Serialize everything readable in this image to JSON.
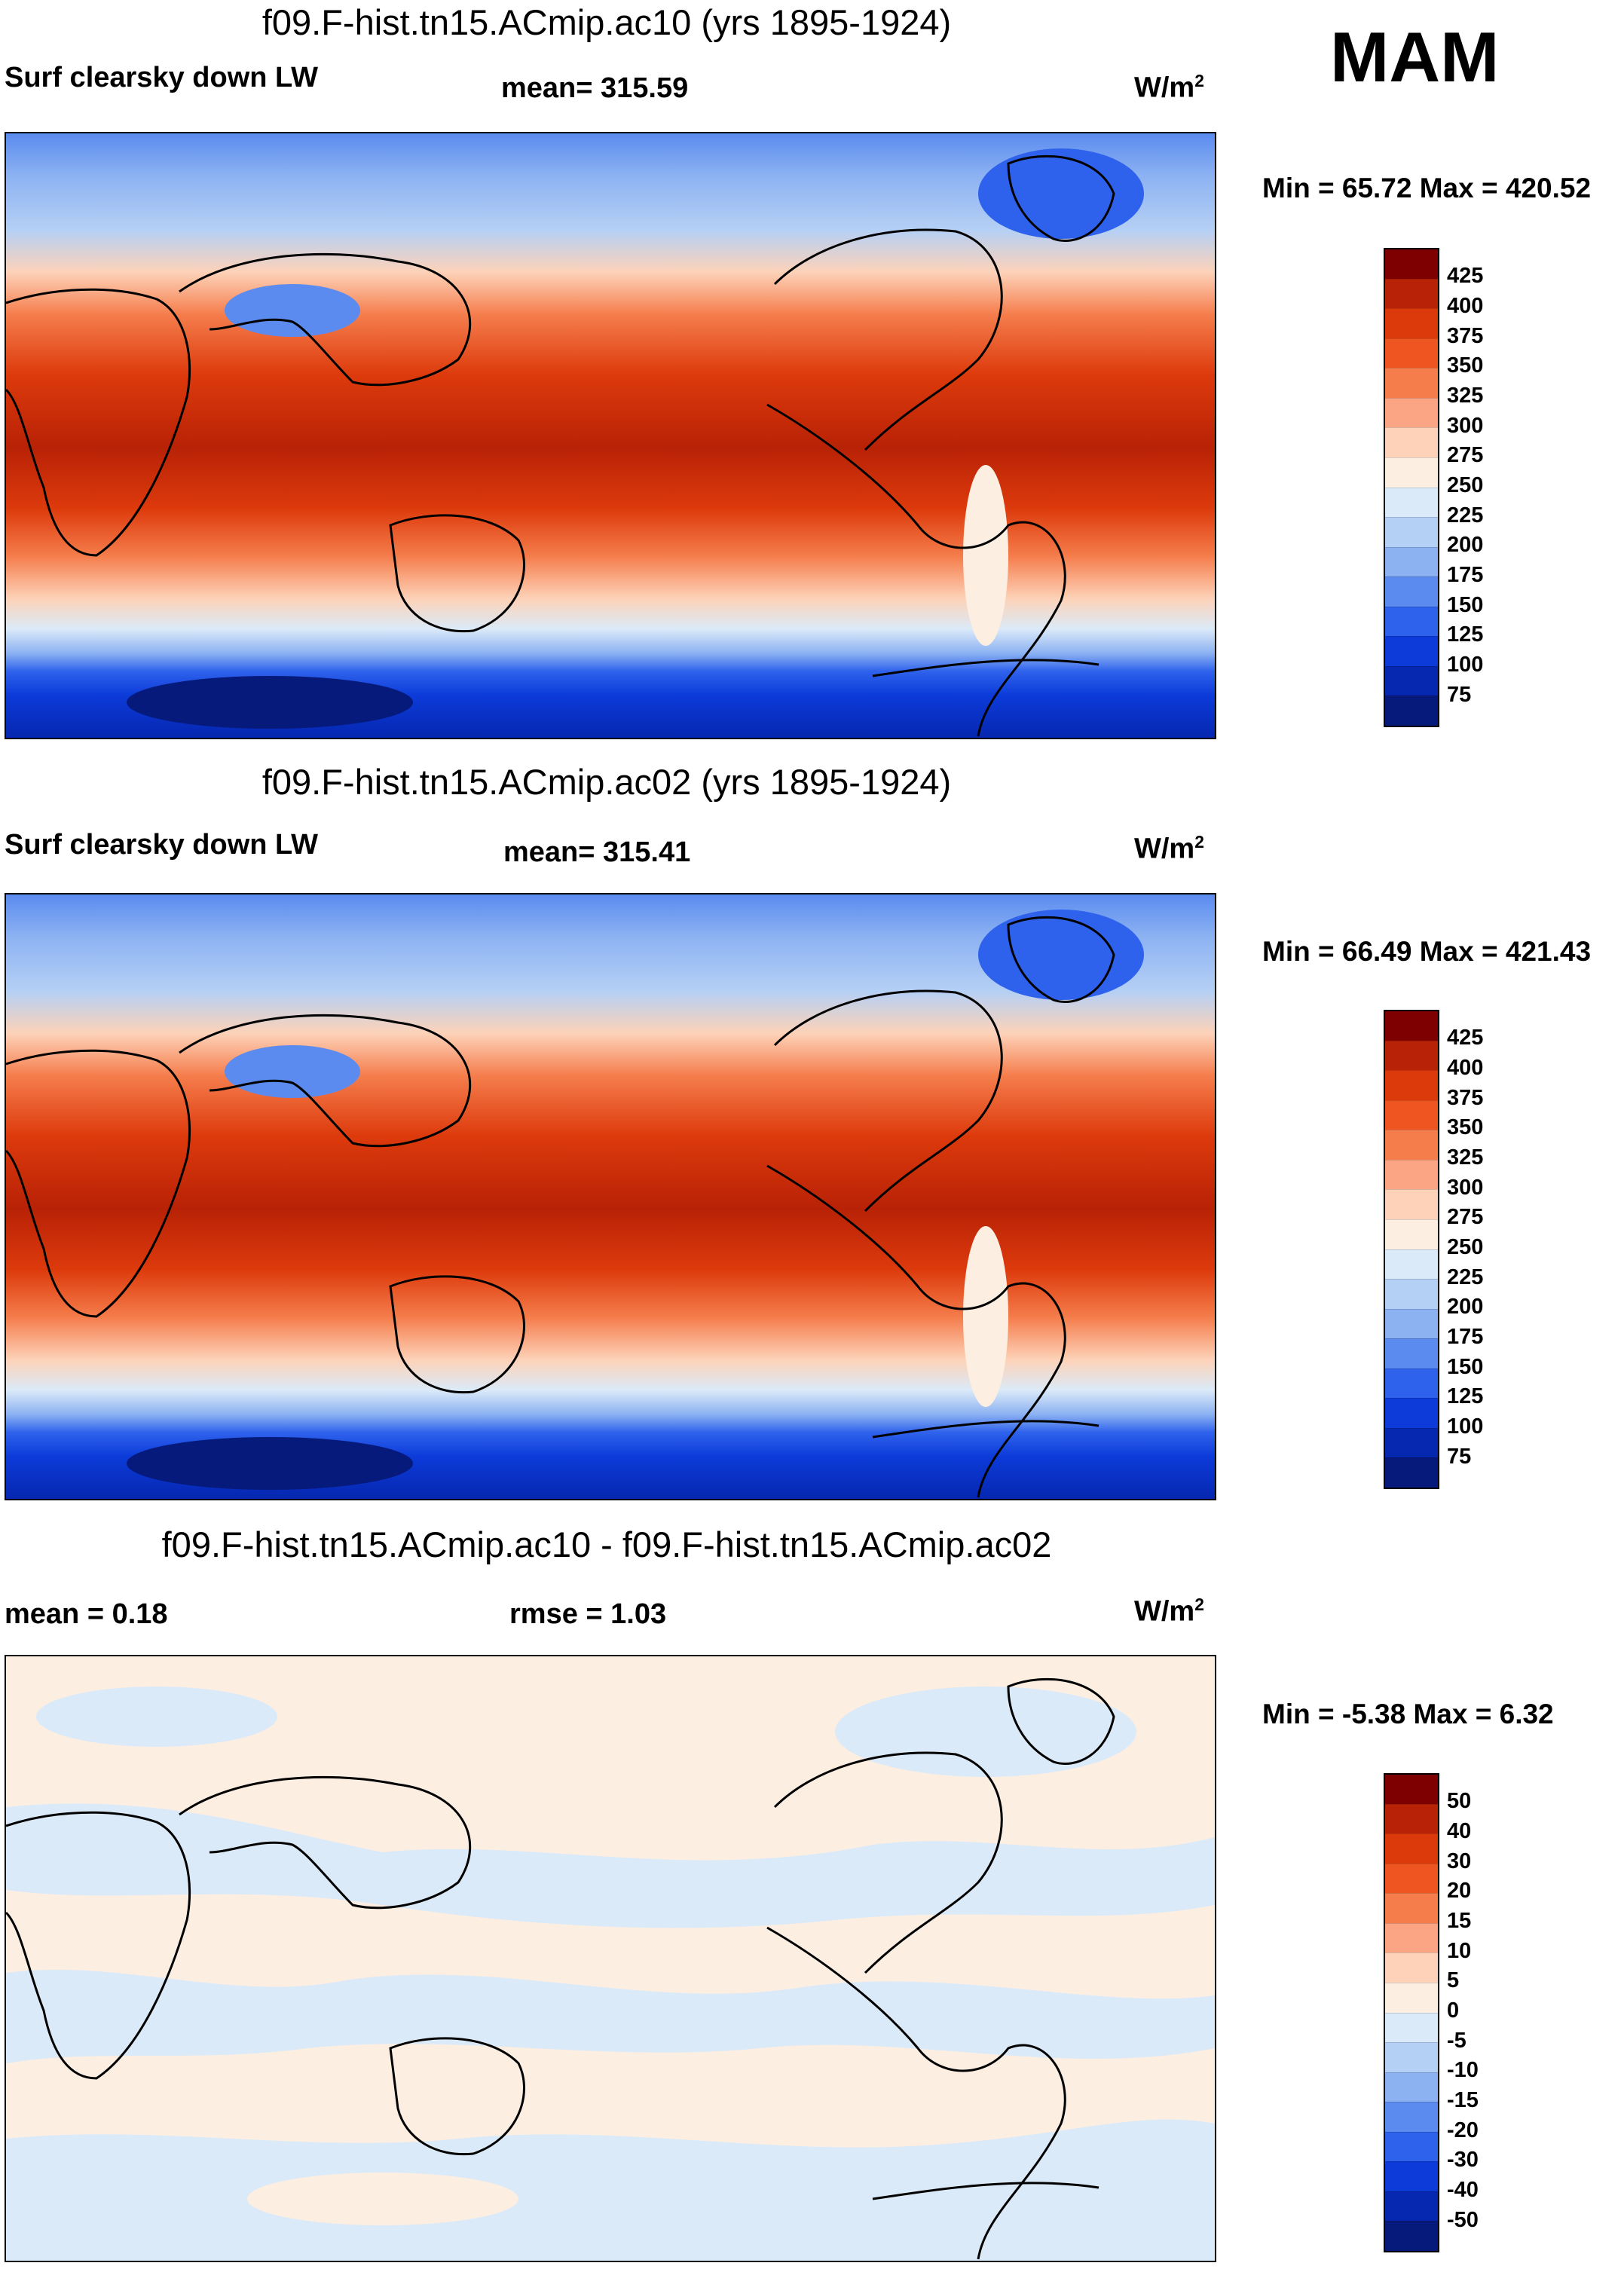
{
  "season": "MAM",
  "units": "W/m2",
  "units_base": "W/m",
  "units_exp": "2",
  "panels": [
    {
      "title": "f09.F-hist.tn15.ACmip.ac10 (yrs 1895-1924)",
      "variable": "Surf clearsky down LW",
      "stat": "mean= 315.59",
      "minmax": "Min =  65.72 Max = 420.52",
      "levels": [
        "425",
        "400",
        "375",
        "350",
        "325",
        "300",
        "275",
        "250",
        "225",
        "200",
        "175",
        "150",
        "125",
        "100",
        "75"
      ]
    },
    {
      "title": "f09.F-hist.tn15.ACmip.ac02 (yrs 1895-1924)",
      "variable": "Surf clearsky down LW",
      "stat": "mean= 315.41",
      "minmax": "Min = 66.49 Max = 421.43",
      "levels": [
        "425",
        "400",
        "375",
        "350",
        "325",
        "300",
        "275",
        "250",
        "225",
        "200",
        "175",
        "150",
        "125",
        "100",
        "75"
      ]
    },
    {
      "title": "f09.F-hist.tn15.ACmip.ac10 - f09.F-hist.tn15.ACmip.ac02",
      "stat_mean": "mean =   0.18",
      "stat_rmse": "rmse =    1.03",
      "minmax": "Min =  -5.38 Max =   6.32",
      "levels": [
        "50",
        "40",
        "30",
        "20",
        "15",
        "10",
        "5",
        "0",
        "-5",
        "-10",
        "-15",
        "-20",
        "-30",
        "-40",
        "-50"
      ]
    }
  ],
  "colors": {
    "abs_scale": [
      "#7f0000",
      "#b82206",
      "#dd3a0c",
      "#ee5520",
      "#f57d4c",
      "#fca585",
      "#fdd2b8",
      "#fdeee2",
      "#dbeaf8",
      "#b5d0f5",
      "#8cb2f2",
      "#5b8bef",
      "#2f62ec",
      "#0c3bd9",
      "#0627b0",
      "#061a7c"
    ],
    "diff_scale": [
      "#7f0000",
      "#b82206",
      "#dd3a0c",
      "#ee5520",
      "#f57d4c",
      "#fca585",
      "#fdd2b8",
      "#fdeee2",
      "#dbeaf8",
      "#b5d0f5",
      "#8cb2f2",
      "#5b8bef",
      "#2f62ec",
      "#0c3bd9",
      "#0627b0",
      "#061a7c"
    ],
    "land_outline": "#000000"
  }
}
